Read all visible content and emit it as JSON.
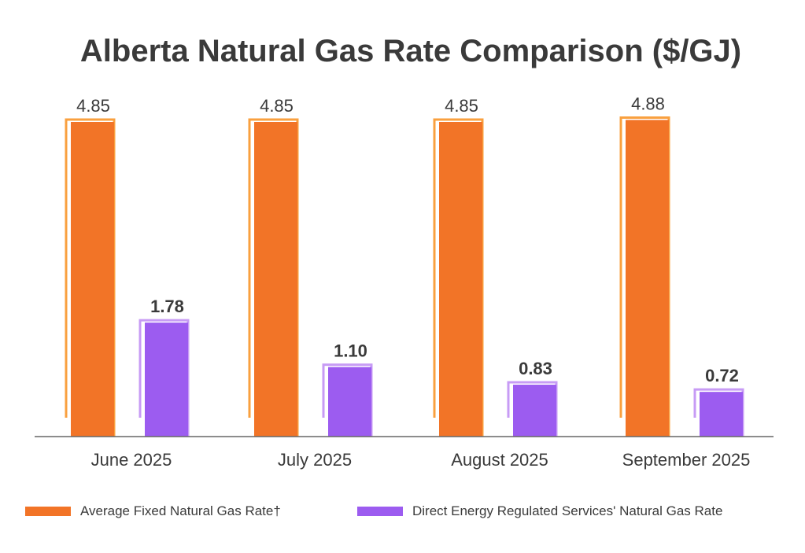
{
  "chart_data": {
    "type": "bar",
    "title": "Alberta Natural Gas Rate Comparison ($/GJ)",
    "categories": [
      "June 2025",
      "July 2025",
      "August 2025",
      "September 2025"
    ],
    "series": [
      {
        "name": "Average Fixed Natural Gas Rate†",
        "values": [
          4.85,
          4.85,
          4.85,
          4.88
        ],
        "labels": [
          "4.85",
          "4.85",
          "4.85",
          "4.88"
        ],
        "color": "#F27427",
        "outline": "#F9A03F"
      },
      {
        "name": "Direct Energy Regulated Services' Natural Gas Rate",
        "values": [
          1.78,
          1.1,
          0.83,
          0.72
        ],
        "labels": [
          "1.78",
          "1.10",
          "0.83",
          "0.72"
        ],
        "color": "#9C5CF0",
        "outline": "#C79BF5"
      }
    ],
    "xlabel": "",
    "ylabel": "",
    "ylim": [
      0,
      4.88
    ],
    "grid": false,
    "legend_position": "bottom"
  }
}
